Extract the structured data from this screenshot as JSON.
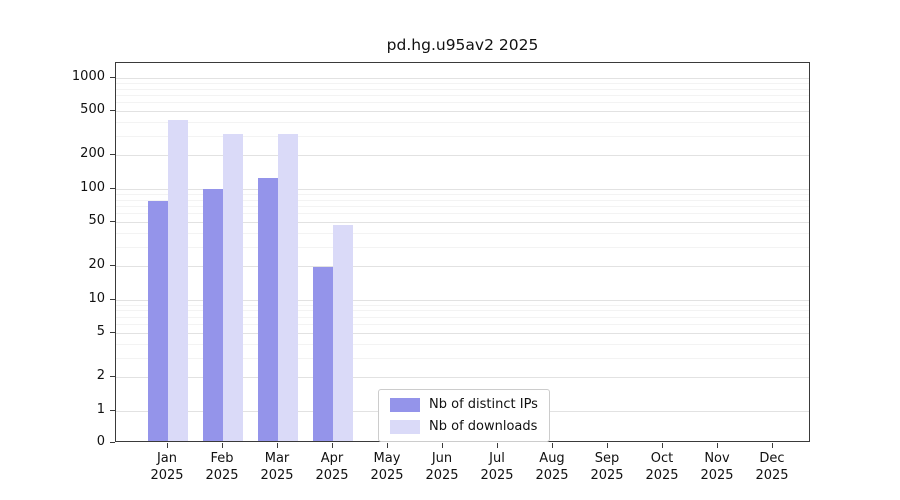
{
  "title": "pd.hg.u95av2 2025",
  "chart_data": {
    "type": "bar",
    "title": "pd.hg.u95av2 2025",
    "categories": [
      "Jan",
      "Feb",
      "Mar",
      "Apr",
      "May",
      "Jun",
      "Jul",
      "Aug",
      "Sep",
      "Oct",
      "Nov",
      "Dec"
    ],
    "year": "2025",
    "series": [
      {
        "name": "Nb of distinct IPs",
        "color": "#9494ea",
        "values": [
          75,
          95,
          120,
          19,
          0,
          0,
          0,
          0,
          0,
          0,
          0,
          0
        ]
      },
      {
        "name": "Nb of downloads",
        "color": "#dadaf8",
        "values": [
          400,
          300,
          300,
          45,
          0,
          0,
          0,
          0,
          0,
          0,
          0,
          0
        ]
      }
    ],
    "y_ticks": [
      0,
      1,
      2,
      5,
      10,
      20,
      50,
      100,
      200,
      500,
      1000
    ],
    "y_scale": "symlog",
    "ylim": [
      0,
      1300
    ],
    "grid": true,
    "legend_position": "bottom-center-inside"
  }
}
